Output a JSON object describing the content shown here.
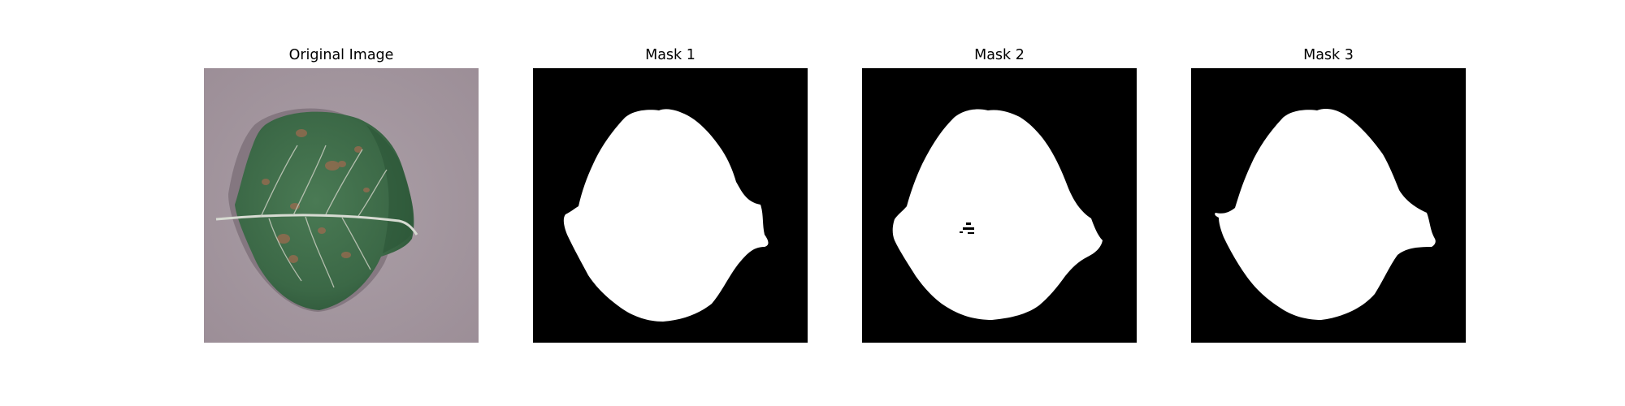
{
  "figure": {
    "panels": [
      {
        "title": "Original Image",
        "kind": "photo"
      },
      {
        "title": "Mask 1",
        "kind": "mask"
      },
      {
        "title": "Mask 2",
        "kind": "mask"
      },
      {
        "title": "Mask 3",
        "kind": "mask"
      }
    ]
  },
  "colors": {
    "photo_background": "#a79aa2",
    "leaf_main": "#3d6a48",
    "leaf_dark": "#2b4f37",
    "leaf_spot": "#9c6a4f",
    "leaf_vein": "#d7dbd2",
    "mask_background": "#000000",
    "mask_foreground": "#ffffff"
  }
}
